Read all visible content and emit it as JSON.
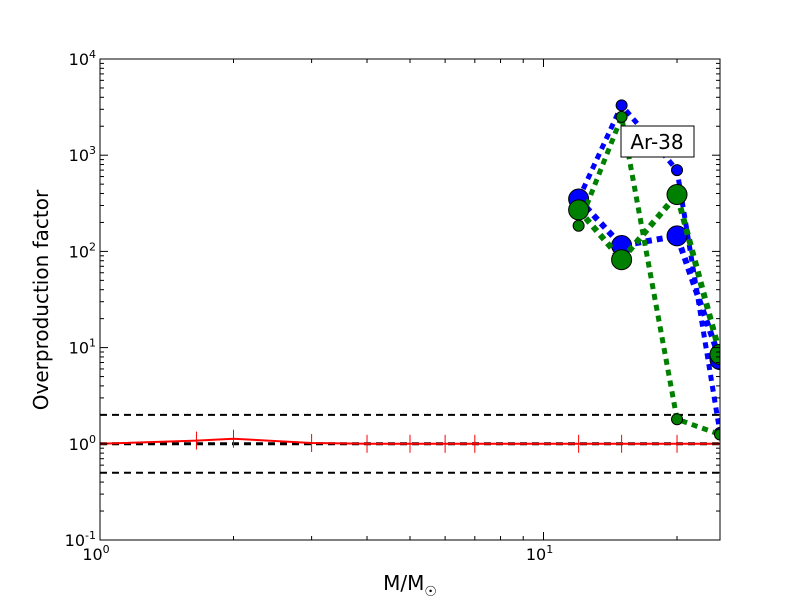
{
  "chart_data": {
    "type": "line",
    "title": "",
    "xlabel": "M/M",
    "xlabel_sub": "☉",
    "ylabel": "Overproduction factor",
    "xscale": "log",
    "yscale": "log",
    "xlim": [
      1,
      25
    ],
    "ylim": [
      0.1,
      10000
    ],
    "x_ticks": [
      {
        "base": "10",
        "exp": "0",
        "value": 1
      },
      {
        "base": "10",
        "exp": "1",
        "value": 10
      }
    ],
    "y_ticks": [
      {
        "base": "10",
        "exp": "-1",
        "value": 0.1
      },
      {
        "base": "10",
        "exp": "0",
        "value": 1
      },
      {
        "base": "10",
        "exp": "1",
        "value": 10
      },
      {
        "base": "10",
        "exp": "2",
        "value": 100
      },
      {
        "base": "10",
        "exp": "3",
        "value": 1000
      },
      {
        "base": "10",
        "exp": "4",
        "value": 10000
      }
    ],
    "annotation": "Ar-38",
    "grid": false,
    "reference_lines": [
      0.5,
      1.0,
      2.0
    ],
    "colors": {
      "red": "#ff0000",
      "blue": "#0000ff",
      "green": "#008000",
      "ref": "#000000"
    },
    "series": [
      {
        "color": "red",
        "style": "solid",
        "x": [
          1,
          1.65,
          2,
          3,
          4,
          5,
          6,
          7,
          12,
          15,
          20,
          25
        ],
        "y": [
          1.0,
          1.08,
          1.13,
          1.02,
          1.0,
          1.0,
          1.0,
          1.0,
          1.0,
          1.0,
          1.0,
          1.0
        ]
      },
      {
        "color": "blue",
        "style": "dotted",
        "marker_size": "small",
        "x": [
          12,
          15,
          20,
          25
        ],
        "y": [
          350,
          3300,
          700,
          1.3
        ]
      },
      {
        "color": "blue",
        "style": "dotted",
        "marker_size": "large",
        "x": [
          12,
          15,
          20,
          25
        ],
        "y": [
          350,
          115,
          145,
          7.5
        ]
      },
      {
        "color": "green",
        "style": "dotted",
        "marker_size": "small",
        "x": [
          12,
          15,
          20,
          25
        ],
        "y": [
          185,
          2500,
          1.8,
          1.25
        ]
      },
      {
        "color": "green",
        "style": "dotted",
        "marker_size": "large",
        "x": [
          12,
          15,
          20,
          25
        ],
        "y": [
          270,
          82,
          390,
          8.5
        ]
      }
    ]
  }
}
